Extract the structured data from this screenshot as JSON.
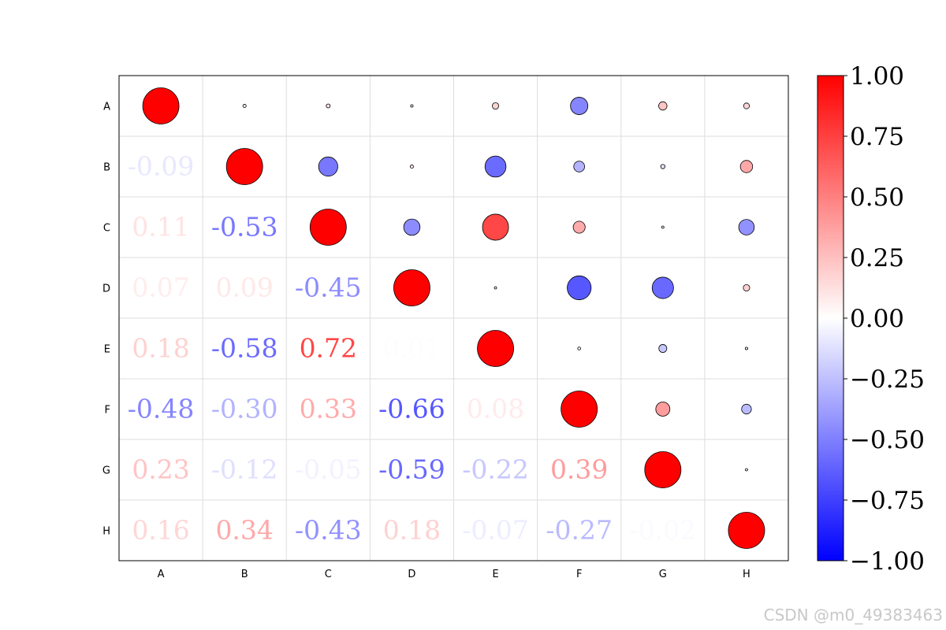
{
  "chart_data": {
    "type": "heatmap",
    "variant": "correlation-matrix",
    "upper_triangle_marks": "circles",
    "lower_triangle_marks": "text",
    "diagonal_marks": "circles",
    "labels": [
      "A",
      "B",
      "C",
      "D",
      "E",
      "F",
      "G",
      "H"
    ],
    "matrix": [
      [
        1.0,
        -0.09,
        0.11,
        0.07,
        0.18,
        -0.48,
        0.23,
        0.16
      ],
      [
        -0.09,
        1.0,
        -0.53,
        0.09,
        -0.58,
        -0.3,
        -0.12,
        0.34
      ],
      [
        0.11,
        -0.53,
        1.0,
        -0.45,
        0.72,
        0.33,
        -0.05,
        -0.43
      ],
      [
        0.07,
        0.09,
        -0.45,
        1.0,
        0.01,
        -0.66,
        -0.59,
        0.18
      ],
      [
        0.18,
        -0.58,
        0.72,
        0.01,
        1.0,
        0.08,
        -0.22,
        -0.07
      ],
      [
        -0.48,
        -0.3,
        0.33,
        -0.66,
        0.08,
        1.0,
        0.39,
        -0.27
      ],
      [
        0.23,
        -0.12,
        -0.05,
        -0.59,
        -0.22,
        0.39,
        1.0,
        -0.02
      ],
      [
        0.16,
        0.34,
        -0.43,
        0.18,
        -0.07,
        -0.27,
        -0.02,
        1.0
      ]
    ],
    "lower_triangle_text": [
      [
        "",
        "",
        "",
        "",
        "",
        "",
        "",
        ""
      ],
      [
        "-0.09",
        "",
        "",
        "",
        "",
        "",
        "",
        ""
      ],
      [
        "0.11",
        "-0.53",
        "",
        "",
        "",
        "",
        "",
        ""
      ],
      [
        "0.07",
        "0.09",
        "-0.45",
        "",
        "",
        "",
        "",
        ""
      ],
      [
        "0.18",
        "-0.58",
        "0.72",
        "0.01",
        "",
        "",
        "",
        ""
      ],
      [
        "-0.48",
        "-0.30",
        "0.33",
        "-0.66",
        "0.08",
        "",
        "",
        ""
      ],
      [
        "0.23",
        "-0.12",
        "-0.05",
        "-0.59",
        "-0.22",
        "0.39",
        "",
        ""
      ],
      [
        "0.16",
        "0.34",
        "-0.43",
        "0.18",
        "-0.07",
        "-0.27",
        "-0.02",
        ""
      ]
    ],
    "colorbar": {
      "range": [
        -1.0,
        1.0
      ],
      "colormap": "bwr",
      "colors": {
        "low": "#0000ff",
        "mid": "#ffffff",
        "high": "#ff0000"
      },
      "ticks": [
        1.0,
        0.75,
        0.5,
        0.25,
        0.0,
        -0.25,
        -0.5,
        -0.75,
        -1.0
      ],
      "tick_labels": [
        "1.00",
        "0.75",
        "0.50",
        "0.25",
        "0.00",
        "−0.25",
        "−0.50",
        "−0.75",
        "−1.00"
      ]
    },
    "grid": true
  },
  "watermark": "CSDN @m0_49383463"
}
